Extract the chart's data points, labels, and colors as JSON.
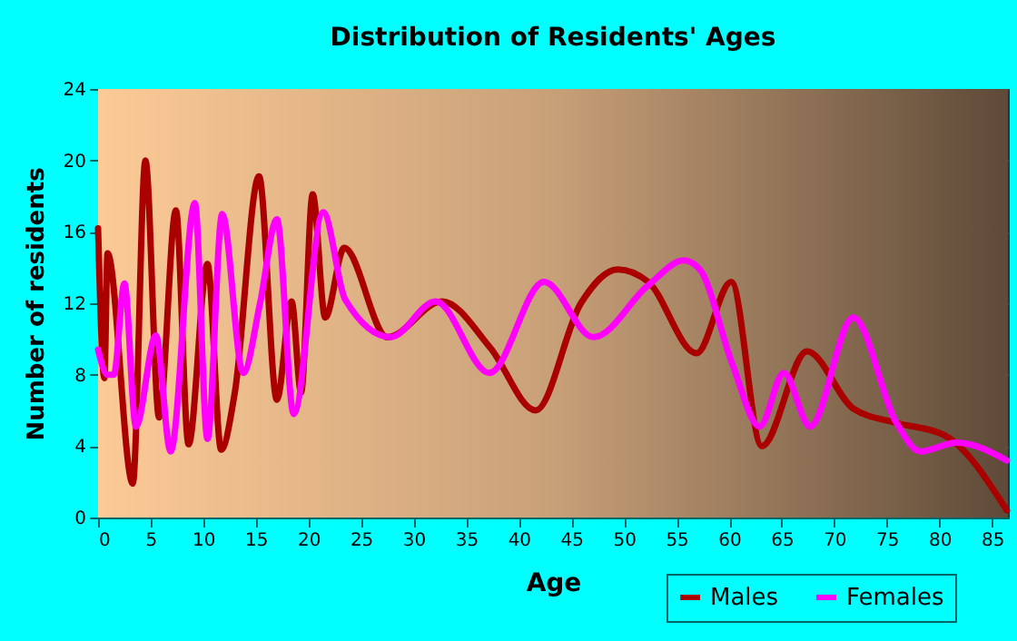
{
  "chart_data": {
    "type": "line",
    "title": "Distribution of Residents' Ages",
    "xlabel": "Age",
    "ylabel": "Number of residents",
    "xlim": [
      0,
      86.5
    ],
    "xticks": [
      0,
      5,
      10,
      15,
      20,
      25,
      30,
      35,
      40,
      45,
      50,
      55,
      60,
      65,
      70,
      75,
      80,
      85
    ],
    "ylim": [
      0,
      24
    ],
    "yticks": [
      0,
      4,
      8,
      12,
      16,
      20,
      24
    ],
    "grid": true,
    "legend": "bottom right",
    "line_style": "solid",
    "series": [
      {
        "name": "Males",
        "color": "#aa0000",
        "x": [
          0,
          0.6,
          0.9,
          3.3,
          4.5,
          5.8,
          7.4,
          8.6,
          10.4,
          11.7,
          13,
          15.3,
          17,
          18.4,
          19.3,
          20.4,
          21.6,
          23.4,
          27.5,
          32.7,
          37.3,
          41.6,
          45.9,
          49.4,
          52.3,
          56.9,
          60.2,
          63.1,
          67.4,
          71.8,
          75.9,
          80.5,
          86.4
        ],
        "values": [
          16.2,
          7.8,
          14.8,
          1.9,
          20,
          5.6,
          17.2,
          4.1,
          14.2,
          3.8,
          7,
          19.1,
          6.6,
          12.1,
          7,
          18.1,
          11.2,
          15.1,
          10.1,
          12.1,
          9.5,
          6,
          12,
          13.9,
          13.2,
          9.2,
          13.2,
          4,
          9.3,
          6.1,
          5.3,
          4.6,
          0.4
        ]
      },
      {
        "name": "Females",
        "color": "#ff00ff",
        "x": [
          0,
          0.9,
          1.5,
          2.5,
          3.6,
          5.5,
          6.9,
          9.2,
          10.4,
          11.8,
          13.8,
          15.4,
          17,
          18.6,
          21.4,
          23.5,
          27.8,
          32.1,
          37.2,
          42.4,
          47.1,
          52.3,
          55.7,
          57.2,
          60.3,
          62.9,
          65.2,
          67.7,
          71.8,
          75.9,
          78.2,
          81.6,
          86.4
        ],
        "values": [
          9.4,
          8,
          8,
          13.1,
          5.1,
          10.2,
          3.7,
          17.6,
          4.4,
          17,
          8.1,
          12,
          16.7,
          5.8,
          17.1,
          12.2,
          10.1,
          12.1,
          8.1,
          13.2,
          10.1,
          13,
          14.4,
          13.9,
          8.6,
          5.1,
          8.1,
          5.1,
          11.2,
          5.3,
          3.7,
          4.2,
          3.2
        ]
      }
    ]
  }
}
